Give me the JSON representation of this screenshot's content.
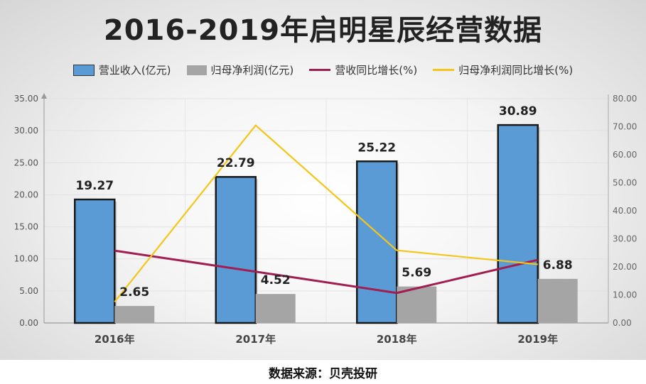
{
  "title": "2016-2019年启明星辰经营数据",
  "source": "数据来源：贝壳投研",
  "chart_data": {
    "type": "bar",
    "categories": [
      "2016年",
      "2017年",
      "2018年",
      "2019年"
    ],
    "series": [
      {
        "name": "营业收入(亿元)",
        "kind": "bar",
        "axis": "left",
        "color": "#5b9bd5",
        "values": [
          19.27,
          22.79,
          25.22,
          30.89
        ]
      },
      {
        "name": "归母净利润(亿元)",
        "kind": "bar",
        "axis": "left",
        "color": "#a5a5a5",
        "values": [
          2.65,
          4.52,
          5.69,
          6.88
        ]
      },
      {
        "name": "营收同比增长(%)",
        "kind": "line",
        "axis": "right",
        "color": "#a01e50",
        "values": [
          25.8,
          18.3,
          10.7,
          22.5
        ]
      },
      {
        "name": "归母净利润同比增长(%)",
        "kind": "line",
        "axis": "right",
        "color": "#f5c518",
        "values": [
          7.5,
          70.5,
          25.9,
          20.9
        ]
      }
    ],
    "left_axis": {
      "min": 0,
      "max": 35,
      "step": 5,
      "ticks": [
        "0.00",
        "5.00",
        "10.00",
        "15.00",
        "20.00",
        "25.00",
        "30.00",
        "35.00"
      ]
    },
    "right_axis": {
      "min": 0,
      "max": 80,
      "step": 10,
      "ticks": [
        "0.00",
        "10.00",
        "20.00",
        "30.00",
        "40.00",
        "50.00",
        "60.00",
        "70.00",
        "80.00"
      ]
    },
    "bar_labels": {
      "revenue": [
        "19.27",
        "22.79",
        "25.22",
        "30.89"
      ],
      "profit": [
        "2.65",
        "4.52",
        "5.69",
        "6.88"
      ]
    },
    "grid": true,
    "legend_position": "top"
  }
}
